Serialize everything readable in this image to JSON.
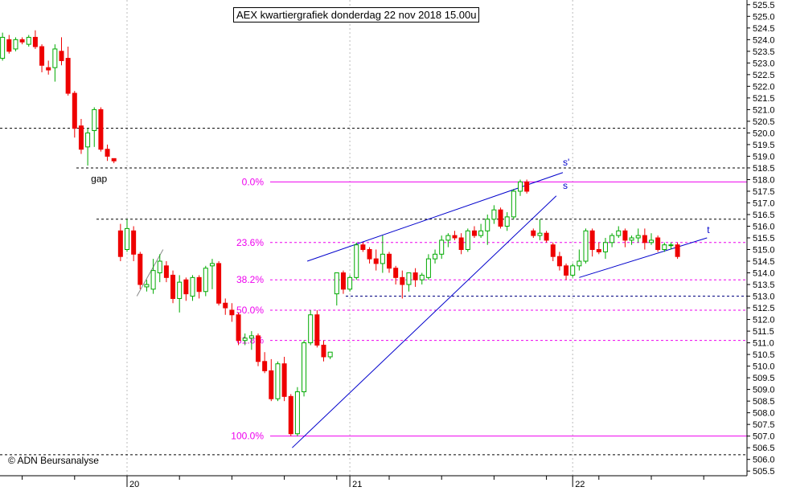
{
  "chart_data": {
    "type": "candlestick",
    "title": "AEX kwartiergrafiek donderdag 22 nov 2018 15.00u",
    "copyright": "© ADN Beursanalyse",
    "ylim": [
      505.3,
      525.7
    ],
    "y_ticks": [
      "505.5",
      "506.0",
      "506.5",
      "507.0",
      "507.5",
      "508.0",
      "508.5",
      "509.0",
      "509.5",
      "510.0",
      "510.5",
      "511.0",
      "511.5",
      "512.0",
      "512.5",
      "513.0",
      "513.5",
      "514.0",
      "514.5",
      "515.0",
      "515.5",
      "516.0",
      "516.5",
      "517.0",
      "517.5",
      "518.0",
      "518.5",
      "519.0",
      "519.5",
      "520.0",
      "520.5",
      "521.0",
      "521.5",
      "522.0",
      "522.5",
      "523.0",
      "523.5",
      "524.0",
      "524.5",
      "525.0",
      "525.5"
    ],
    "x_labels": [
      {
        "label": "20",
        "x": 20
      },
      {
        "label": "21",
        "x": 54
      },
      {
        "label": "22",
        "x": 88
      }
    ],
    "candles": [
      [
        0,
        523.4,
        523.9,
        523.1,
        523.2
      ],
      [
        1,
        523.2,
        524.3,
        523.1,
        524.1
      ],
      [
        2,
        524.0,
        524.2,
        523.4,
        523.5
      ],
      [
        3,
        523.6,
        524.1,
        523.5,
        524.0
      ],
      [
        4,
        524.0,
        524.1,
        523.8,
        523.9
      ],
      [
        5,
        523.8,
        524.2,
        523.7,
        524.1
      ],
      [
        6,
        524.1,
        524.4,
        523.6,
        523.7
      ],
      [
        7,
        523.7,
        523.8,
        522.6,
        522.9
      ],
      [
        8,
        522.8,
        523.1,
        522.5,
        522.7
      ],
      [
        9,
        522.8,
        523.8,
        522.2,
        523.6
      ],
      [
        10,
        523.5,
        524.1,
        522.9,
        523.1
      ],
      [
        11,
        523.2,
        523.7,
        521.6,
        521.7
      ],
      [
        12,
        521.7,
        521.8,
        519.8,
        520.2
      ],
      [
        13,
        520.3,
        520.6,
        519.1,
        519.3
      ],
      [
        14,
        519.4,
        520.2,
        518.6,
        520.0
      ],
      [
        15,
        520.1,
        521.1,
        519.4,
        521.0
      ],
      [
        16,
        521.0,
        521.1,
        519.2,
        519.3
      ],
      [
        17,
        519.3,
        519.5,
        518.8,
        519.0
      ],
      [
        18,
        518.9,
        518.9,
        518.7,
        518.8
      ],
      [
        19,
        515.8,
        516.1,
        514.5,
        514.7
      ],
      [
        20,
        515.0,
        516.3,
        514.9,
        515.9
      ],
      [
        21,
        515.8,
        516.0,
        514.5,
        514.8
      ],
      [
        22,
        514.8,
        514.9,
        513.3,
        513.5
      ],
      [
        23,
        513.4,
        513.7,
        513.2,
        513.5
      ],
      [
        24,
        513.3,
        514.6,
        513.1,
        514.1
      ],
      [
        25,
        514.0,
        514.8,
        513.6,
        514.5
      ],
      [
        26,
        514.3,
        514.5,
        513.6,
        513.8
      ],
      [
        27,
        513.9,
        514.1,
        512.7,
        512.9
      ],
      [
        28,
        512.9,
        513.9,
        512.3,
        513.6
      ],
      [
        29,
        513.7,
        513.8,
        512.8,
        513.1
      ],
      [
        30,
        513.0,
        513.9,
        512.8,
        513.8
      ],
      [
        31,
        513.8,
        513.9,
        512.9,
        513.2
      ],
      [
        32,
        513.2,
        514.3,
        513.0,
        514.2
      ],
      [
        33,
        514.3,
        514.6,
        513.3,
        514.4
      ],
      [
        34,
        514.4,
        514.5,
        512.6,
        512.7
      ],
      [
        35,
        512.7,
        512.9,
        512.2,
        512.5
      ],
      [
        36,
        512.4,
        512.7,
        511.9,
        512.2
      ],
      [
        37,
        512.2,
        512.3,
        510.9,
        511.1
      ],
      [
        38,
        511.1,
        511.4,
        510.9,
        511.2
      ],
      [
        39,
        511.2,
        511.5,
        510.7,
        511.3
      ],
      [
        40,
        511.3,
        511.4,
        510.0,
        510.2
      ],
      [
        41,
        510.2,
        510.6,
        509.7,
        509.8
      ],
      [
        42,
        509.8,
        510.3,
        508.5,
        508.6
      ],
      [
        43,
        508.6,
        510.2,
        508.5,
        510.1
      ],
      [
        44,
        510.1,
        510.4,
        508.5,
        508.7
      ],
      [
        45,
        508.7,
        508.8,
        507.0,
        507.1
      ],
      [
        46,
        507.1,
        509.1,
        507.0,
        508.9
      ],
      [
        47,
        508.9,
        511.1,
        508.7,
        511.0
      ],
      [
        48,
        511.0,
        512.4,
        510.9,
        512.2
      ],
      [
        49,
        512.2,
        512.4,
        510.8,
        510.9
      ],
      [
        50,
        510.9,
        511.1,
        510.2,
        510.4
      ],
      [
        51,
        510.4,
        510.6,
        510.3,
        510.6
      ],
      [
        52,
        513.1,
        514.0,
        512.6,
        514.0
      ],
      [
        53,
        514.0,
        514.1,
        513.1,
        513.3
      ],
      [
        54,
        513.3,
        513.9,
        513.2,
        513.8
      ],
      [
        55,
        513.8,
        515.3,
        513.7,
        515.2
      ],
      [
        56,
        515.2,
        515.3,
        514.9,
        515.0
      ],
      [
        57,
        515.0,
        515.1,
        514.4,
        514.6
      ],
      [
        58,
        514.6,
        515.0,
        514.1,
        514.4
      ],
      [
        59,
        514.4,
        515.6,
        514.0,
        514.8
      ],
      [
        60,
        514.8,
        514.9,
        514.0,
        514.2
      ],
      [
        61,
        514.2,
        514.3,
        513.5,
        513.8
      ],
      [
        62,
        513.8,
        514.1,
        512.9,
        513.5
      ],
      [
        63,
        513.5,
        514.0,
        513.2,
        514.0
      ],
      [
        64,
        514.0,
        514.2,
        513.4,
        513.7
      ],
      [
        65,
        513.7,
        514.0,
        513.5,
        513.9
      ],
      [
        66,
        513.8,
        514.8,
        513.7,
        514.6
      ],
      [
        67,
        514.6,
        515.0,
        514.4,
        514.8
      ],
      [
        68,
        514.8,
        515.6,
        514.6,
        515.4
      ],
      [
        69,
        515.4,
        515.7,
        515.1,
        515.6
      ],
      [
        70,
        515.6,
        515.8,
        515.4,
        515.5
      ],
      [
        71,
        515.5,
        515.7,
        514.8,
        515.0
      ],
      [
        72,
        515.0,
        515.9,
        514.9,
        515.8
      ],
      [
        73,
        515.8,
        516.0,
        515.5,
        515.6
      ],
      [
        74,
        515.6,
        516.1,
        515.5,
        515.8
      ],
      [
        75,
        515.8,
        516.5,
        515.2,
        516.3
      ],
      [
        76,
        516.3,
        516.9,
        516.1,
        516.7
      ],
      [
        77,
        516.7,
        516.8,
        515.9,
        516.0
      ],
      [
        78,
        516.0,
        516.6,
        515.8,
        516.4
      ],
      [
        79,
        516.4,
        517.6,
        516.3,
        517.5
      ],
      [
        80,
        517.5,
        518.0,
        517.3,
        517.9
      ],
      [
        81,
        517.9,
        518.0,
        517.4,
        517.5
      ],
      [
        82,
        515.8,
        515.9,
        515.5,
        515.6
      ],
      [
        83,
        515.6,
        516.3,
        515.4,
        515.7
      ],
      [
        84,
        515.7,
        515.8,
        515.3,
        515.4
      ],
      [
        85,
        515.2,
        515.3,
        514.5,
        514.7
      ],
      [
        86,
        514.7,
        514.9,
        514.1,
        514.3
      ],
      [
        87,
        514.3,
        514.4,
        513.7,
        513.9
      ],
      [
        88,
        513.9,
        514.4,
        513.8,
        514.3
      ],
      [
        89,
        514.3,
        515.0,
        514.1,
        514.5
      ],
      [
        90,
        514.5,
        515.9,
        514.4,
        515.8
      ],
      [
        91,
        515.8,
        515.9,
        514.7,
        515.0
      ],
      [
        92,
        515.0,
        515.3,
        514.8,
        514.9
      ],
      [
        93,
        514.9,
        515.5,
        514.6,
        515.3
      ],
      [
        94,
        515.3,
        515.7,
        515.1,
        515.6
      ],
      [
        95,
        515.6,
        516.0,
        515.5,
        515.8
      ],
      [
        96,
        515.8,
        515.9,
        515.1,
        515.4
      ],
      [
        97,
        515.4,
        515.6,
        515.2,
        515.5
      ],
      [
        98,
        515.5,
        515.9,
        515.3,
        515.6
      ],
      [
        99,
        515.6,
        515.9,
        515.0,
        515.3
      ],
      [
        100,
        515.3,
        515.7,
        515.2,
        515.4
      ],
      [
        101,
        515.5,
        515.6,
        514.9,
        515.0
      ],
      [
        102,
        515.0,
        515.3,
        514.9,
        515.2
      ],
      [
        103,
        515.2,
        515.3,
        515.0,
        515.2
      ],
      [
        104,
        515.2,
        515.3,
        514.6,
        514.7
      ]
    ],
    "horizontal_lines": [
      {
        "y": 520.2,
        "style": "dashed",
        "color": "#000000"
      },
      {
        "y": 518.5,
        "style": "dashed",
        "color": "#000000"
      },
      {
        "y": 516.3,
        "style": "dashed",
        "color": "#000000"
      },
      {
        "y": 513.0,
        "style": "dashed",
        "color": "#000080"
      },
      {
        "y": 506.2,
        "style": "dashed",
        "color": "#000000"
      }
    ],
    "fib_levels": [
      {
        "label": "0.0%",
        "y": 517.9,
        "style": "solid"
      },
      {
        "label": "23.6%",
        "y": 515.3,
        "style": "dashed"
      },
      {
        "label": "38.2%",
        "y": 513.7,
        "style": "dashed"
      },
      {
        "label": "50.0%",
        "y": 512.4,
        "style": "dashed"
      },
      {
        "label": "61.8%",
        "y": 511.1,
        "style": "dashed"
      },
      {
        "label": "100.0%",
        "y": 507.0,
        "style": "solid"
      }
    ],
    "trendlines": [
      {
        "x1": 45.2,
        "y1": 506.5,
        "x2": 85.5,
        "y2": 517.3,
        "color": "#0000cc"
      },
      {
        "x1": 47.5,
        "y1": 514.5,
        "x2": 86.5,
        "y2": 518.3,
        "color": "#0000cc"
      },
      {
        "x1": 89.0,
        "y1": 513.8,
        "x2": 108.5,
        "y2": 515.5,
        "color": "#0000cc"
      },
      {
        "x1": 21.5,
        "y1": 513.0,
        "x2": 25.5,
        "y2": 515.0,
        "color": "#8a8a8a"
      }
    ],
    "annotations": [
      {
        "text": "gap",
        "x": 14.5,
        "y": 517.9,
        "color": "#000000"
      },
      {
        "text": "s'",
        "x": 86.5,
        "y": 518.6,
        "color": "#0000cc"
      },
      {
        "text": "s",
        "x": 86.5,
        "y": 517.6,
        "color": "#0000cc"
      },
      {
        "text": "t",
        "x": 108.5,
        "y": 515.7,
        "color": "#0000cc"
      }
    ],
    "colors": {
      "up": "#00aa00",
      "down": "#ee0000",
      "fib": "#ee00ee",
      "grid": "#bbbbbb",
      "trend": "#0000cc"
    }
  }
}
